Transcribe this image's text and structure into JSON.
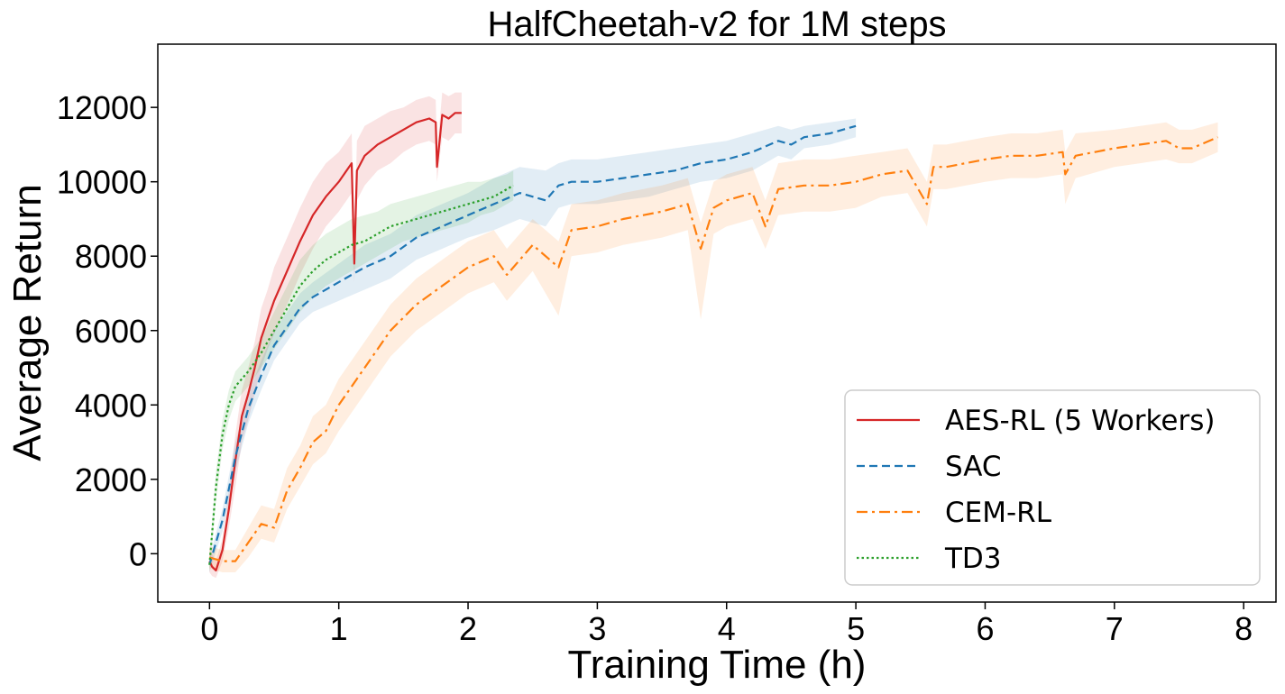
{
  "chart_data": {
    "type": "line",
    "title": "HalfCheetah-v2  for 1M steps",
    "xlabel": "Training Time (h)",
    "ylabel": "Average Return",
    "xlim": [
      -0.4,
      8.25
    ],
    "ylim": [
      -1300,
      13700
    ],
    "xticks": [
      0,
      1,
      2,
      3,
      4,
      5,
      6,
      7,
      8
    ],
    "xtick_labels": [
      "0",
      "1",
      "2",
      "3",
      "4",
      "5",
      "6",
      "7",
      "8"
    ],
    "yticks": [
      0,
      2000,
      4000,
      6000,
      8000,
      10000,
      12000
    ],
    "ytick_labels": [
      "0",
      "2000",
      "4000",
      "6000",
      "8000",
      "10000",
      "12000"
    ],
    "grid": false,
    "legend_position": "lower-right",
    "series": [
      {
        "name": "AES-RL (5 Workers)",
        "color": "#d62728",
        "style": "solid",
        "x": [
          0,
          0.02,
          0.05,
          0.1,
          0.15,
          0.2,
          0.25,
          0.3,
          0.35,
          0.4,
          0.45,
          0.5,
          0.6,
          0.7,
          0.8,
          0.9,
          1.0,
          1.1,
          1.12,
          1.14,
          1.2,
          1.3,
          1.4,
          1.5,
          1.6,
          1.7,
          1.75,
          1.76,
          1.8,
          1.85,
          1.9,
          1.95
        ],
        "y": [
          -200,
          -350,
          -450,
          100,
          1200,
          2500,
          3700,
          4300,
          5000,
          5800,
          6300,
          6800,
          7600,
          8400,
          9100,
          9600,
          10000,
          10500,
          7800,
          10300,
          10700,
          11000,
          11200,
          11400,
          11600,
          11700,
          11600,
          10400,
          11800,
          11700,
          11850,
          11850
        ],
        "band_lower": [
          -500,
          -600,
          -650,
          -200,
          700,
          1800,
          3000,
          3600,
          4300,
          5000,
          5500,
          5900,
          6700,
          7500,
          8200,
          8800,
          9200,
          9700,
          7300,
          9500,
          9900,
          10300,
          10500,
          10800,
          11000,
          11100,
          11000,
          10000,
          11200,
          11100,
          11300,
          11300
        ],
        "band_upper": [
          100,
          0,
          -200,
          400,
          1700,
          3200,
          4400,
          5000,
          5700,
          6600,
          7100,
          7700,
          8500,
          9300,
          10000,
          10500,
          10800,
          11300,
          8300,
          11100,
          11500,
          11700,
          11900,
          12000,
          12200,
          12300,
          12200,
          10800,
          12400,
          12300,
          12400,
          12400
        ]
      },
      {
        "name": "SAC",
        "color": "#1f77b4",
        "style": "dashed",
        "x": [
          0,
          0.1,
          0.2,
          0.3,
          0.4,
          0.5,
          0.6,
          0.7,
          0.8,
          1.0,
          1.2,
          1.4,
          1.6,
          1.8,
          2.0,
          2.2,
          2.4,
          2.6,
          2.7,
          2.8,
          3.0,
          3.2,
          3.4,
          3.6,
          3.8,
          4.0,
          4.2,
          4.4,
          4.5,
          4.6,
          4.8,
          5.0
        ],
        "y": [
          -300,
          900,
          2600,
          3900,
          4800,
          5600,
          6100,
          6600,
          6900,
          7300,
          7700,
          8000,
          8500,
          8800,
          9100,
          9400,
          9700,
          9500,
          9900,
          10000,
          10000,
          10100,
          10200,
          10300,
          10500,
          10600,
          10800,
          11100,
          11000,
          11200,
          11300,
          11500
        ],
        "band_lower": [
          -500,
          600,
          2200,
          3500,
          4400,
          5200,
          5700,
          6200,
          6500,
          6800,
          7100,
          7400,
          7900,
          8200,
          8500,
          8700,
          9000,
          8800,
          9300,
          9400,
          9400,
          9500,
          9600,
          9800,
          10000,
          10100,
          10300,
          10700,
          10600,
          10900,
          11000,
          11200
        ],
        "band_upper": [
          -100,
          1200,
          3000,
          4300,
          5200,
          6000,
          6500,
          7000,
          7300,
          7800,
          8300,
          8600,
          9100,
          9400,
          9700,
          10100,
          10400,
          10300,
          10500,
          10600,
          10600,
          10700,
          10800,
          10900,
          11000,
          11100,
          11300,
          11500,
          11400,
          11500,
          11600,
          11700
        ]
      },
      {
        "name": "CEM-RL",
        "color": "#ff7f0e",
        "style": "dashdot",
        "x": [
          0,
          0.1,
          0.2,
          0.3,
          0.4,
          0.5,
          0.6,
          0.7,
          0.8,
          0.9,
          1.0,
          1.2,
          1.4,
          1.6,
          1.8,
          2.0,
          2.2,
          2.3,
          2.5,
          2.7,
          2.8,
          3.0,
          3.2,
          3.5,
          3.7,
          3.8,
          3.9,
          4.0,
          4.2,
          4.3,
          4.4,
          4.6,
          4.8,
          5.0,
          5.2,
          5.4,
          5.55,
          5.6,
          5.7,
          6.0,
          6.2,
          6.4,
          6.6,
          6.62,
          6.7,
          7.0,
          7.2,
          7.4,
          7.5,
          7.6,
          7.8
        ],
        "y": [
          -100,
          -200,
          -200,
          300,
          800,
          700,
          1700,
          2300,
          3000,
          3300,
          4000,
          5000,
          6000,
          6700,
          7200,
          7700,
          8000,
          7500,
          8300,
          7700,
          8700,
          8800,
          9000,
          9200,
          9400,
          8200,
          9300,
          9500,
          9700,
          8800,
          9800,
          9900,
          9900,
          10000,
          10200,
          10300,
          9400,
          10400,
          10400,
          10600,
          10700,
          10700,
          10800,
          10200,
          10700,
          10900,
          11000,
          11100,
          10900,
          10900,
          11200
        ],
        "band_lower": [
          -400,
          -500,
          -500,
          -100,
          400,
          300,
          1200,
          1800,
          2400,
          2700,
          3300,
          4300,
          5300,
          6000,
          6500,
          7000,
          7300,
          6800,
          7600,
          6400,
          8000,
          8100,
          8300,
          8500,
          8700,
          6300,
          8600,
          8800,
          9000,
          8200,
          9100,
          9200,
          9200,
          9300,
          9600,
          9700,
          8800,
          9800,
          9800,
          10000,
          10100,
          10100,
          10200,
          9400,
          10100,
          10400,
          10500,
          10600,
          10500,
          10500,
          10800
        ],
        "band_upper": [
          200,
          100,
          100,
          700,
          1300,
          1200,
          2300,
          2900,
          3700,
          4000,
          4700,
          5700,
          6700,
          7400,
          7900,
          8400,
          8700,
          8200,
          9000,
          8400,
          9400,
          9500,
          9700,
          9900,
          10100,
          8900,
          10000,
          10200,
          10400,
          9500,
          10500,
          10600,
          10600,
          10700,
          10800,
          10900,
          10000,
          11000,
          11000,
          11200,
          11300,
          11300,
          11400,
          10800,
          11300,
          11400,
          11500,
          11600,
          11400,
          11400,
          11600
        ]
      },
      {
        "name": "TD3",
        "color": "#2ca02c",
        "style": "dotted",
        "x": [
          0,
          0.05,
          0.1,
          0.15,
          0.2,
          0.3,
          0.4,
          0.5,
          0.6,
          0.7,
          0.8,
          0.9,
          1.0,
          1.1,
          1.2,
          1.3,
          1.4,
          1.5,
          1.6,
          1.7,
          1.8,
          1.9,
          2.0,
          2.1,
          2.2,
          2.3,
          2.35
        ],
        "y": [
          -300,
          1800,
          3200,
          4000,
          4500,
          4900,
          5400,
          6000,
          6600,
          7200,
          7600,
          7900,
          8100,
          8300,
          8400,
          8600,
          8800,
          8900,
          9000,
          9100,
          9200,
          9300,
          9400,
          9500,
          9600,
          9800,
          9900
        ],
        "band_lower": [
          -500,
          1400,
          2800,
          3600,
          4100,
          4500,
          5000,
          5500,
          6000,
          6500,
          6900,
          7200,
          7400,
          7600,
          7800,
          8000,
          8200,
          8400,
          8500,
          8600,
          8700,
          8800,
          8900,
          9100,
          9200,
          9400,
          9500
        ],
        "band_upper": [
          -100,
          2200,
          3600,
          4400,
          4900,
          5300,
          5800,
          6500,
          7200,
          7900,
          8300,
          8600,
          8800,
          9000,
          9100,
          9200,
          9400,
          9500,
          9600,
          9700,
          9800,
          9900,
          10000,
          10000,
          10100,
          10200,
          10300
        ]
      }
    ]
  }
}
